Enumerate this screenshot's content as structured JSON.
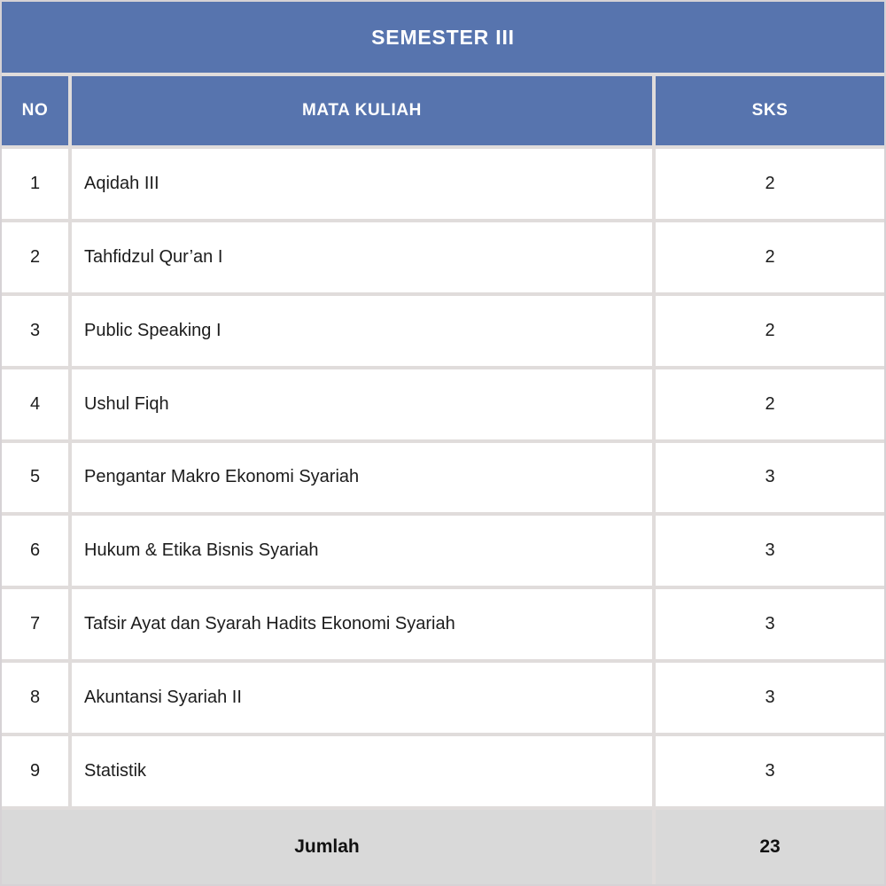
{
  "table": {
    "title": "SEMESTER III",
    "columns": {
      "no": "NO",
      "course": "MATA KULIAH",
      "sks": "SKS"
    },
    "rows": [
      {
        "no": "1",
        "course": "Aqidah III",
        "sks": "2"
      },
      {
        "no": "2",
        "course": "Tahfidzul Qur’an I",
        "sks": "2"
      },
      {
        "no": "3",
        "course": "Public Speaking I",
        "sks": "2"
      },
      {
        "no": "4",
        "course": "Ushul Fiqh",
        "sks": "2"
      },
      {
        "no": "5",
        "course": "Pengantar Makro Ekonomi Syariah",
        "sks": "3"
      },
      {
        "no": "6",
        "course": "Hukum & Etika Bisnis Syariah",
        "sks": "3"
      },
      {
        "no": "7",
        "course": "Tafsir Ayat dan Syarah Hadits Ekonomi Syariah",
        "sks": "3"
      },
      {
        "no": "8",
        "course": "Akuntansi Syariah II",
        "sks": "3"
      },
      {
        "no": "9",
        "course": "Statistik",
        "sks": "3"
      }
    ],
    "footer": {
      "label": "Jumlah",
      "total": "23"
    }
  },
  "colors": {
    "header_blue": "#5774ae",
    "footer_gray": "#d9d9d9",
    "grid_line": "#e0dcdb",
    "header_text": "#ffffff",
    "body_text": "#1c1c1c"
  }
}
